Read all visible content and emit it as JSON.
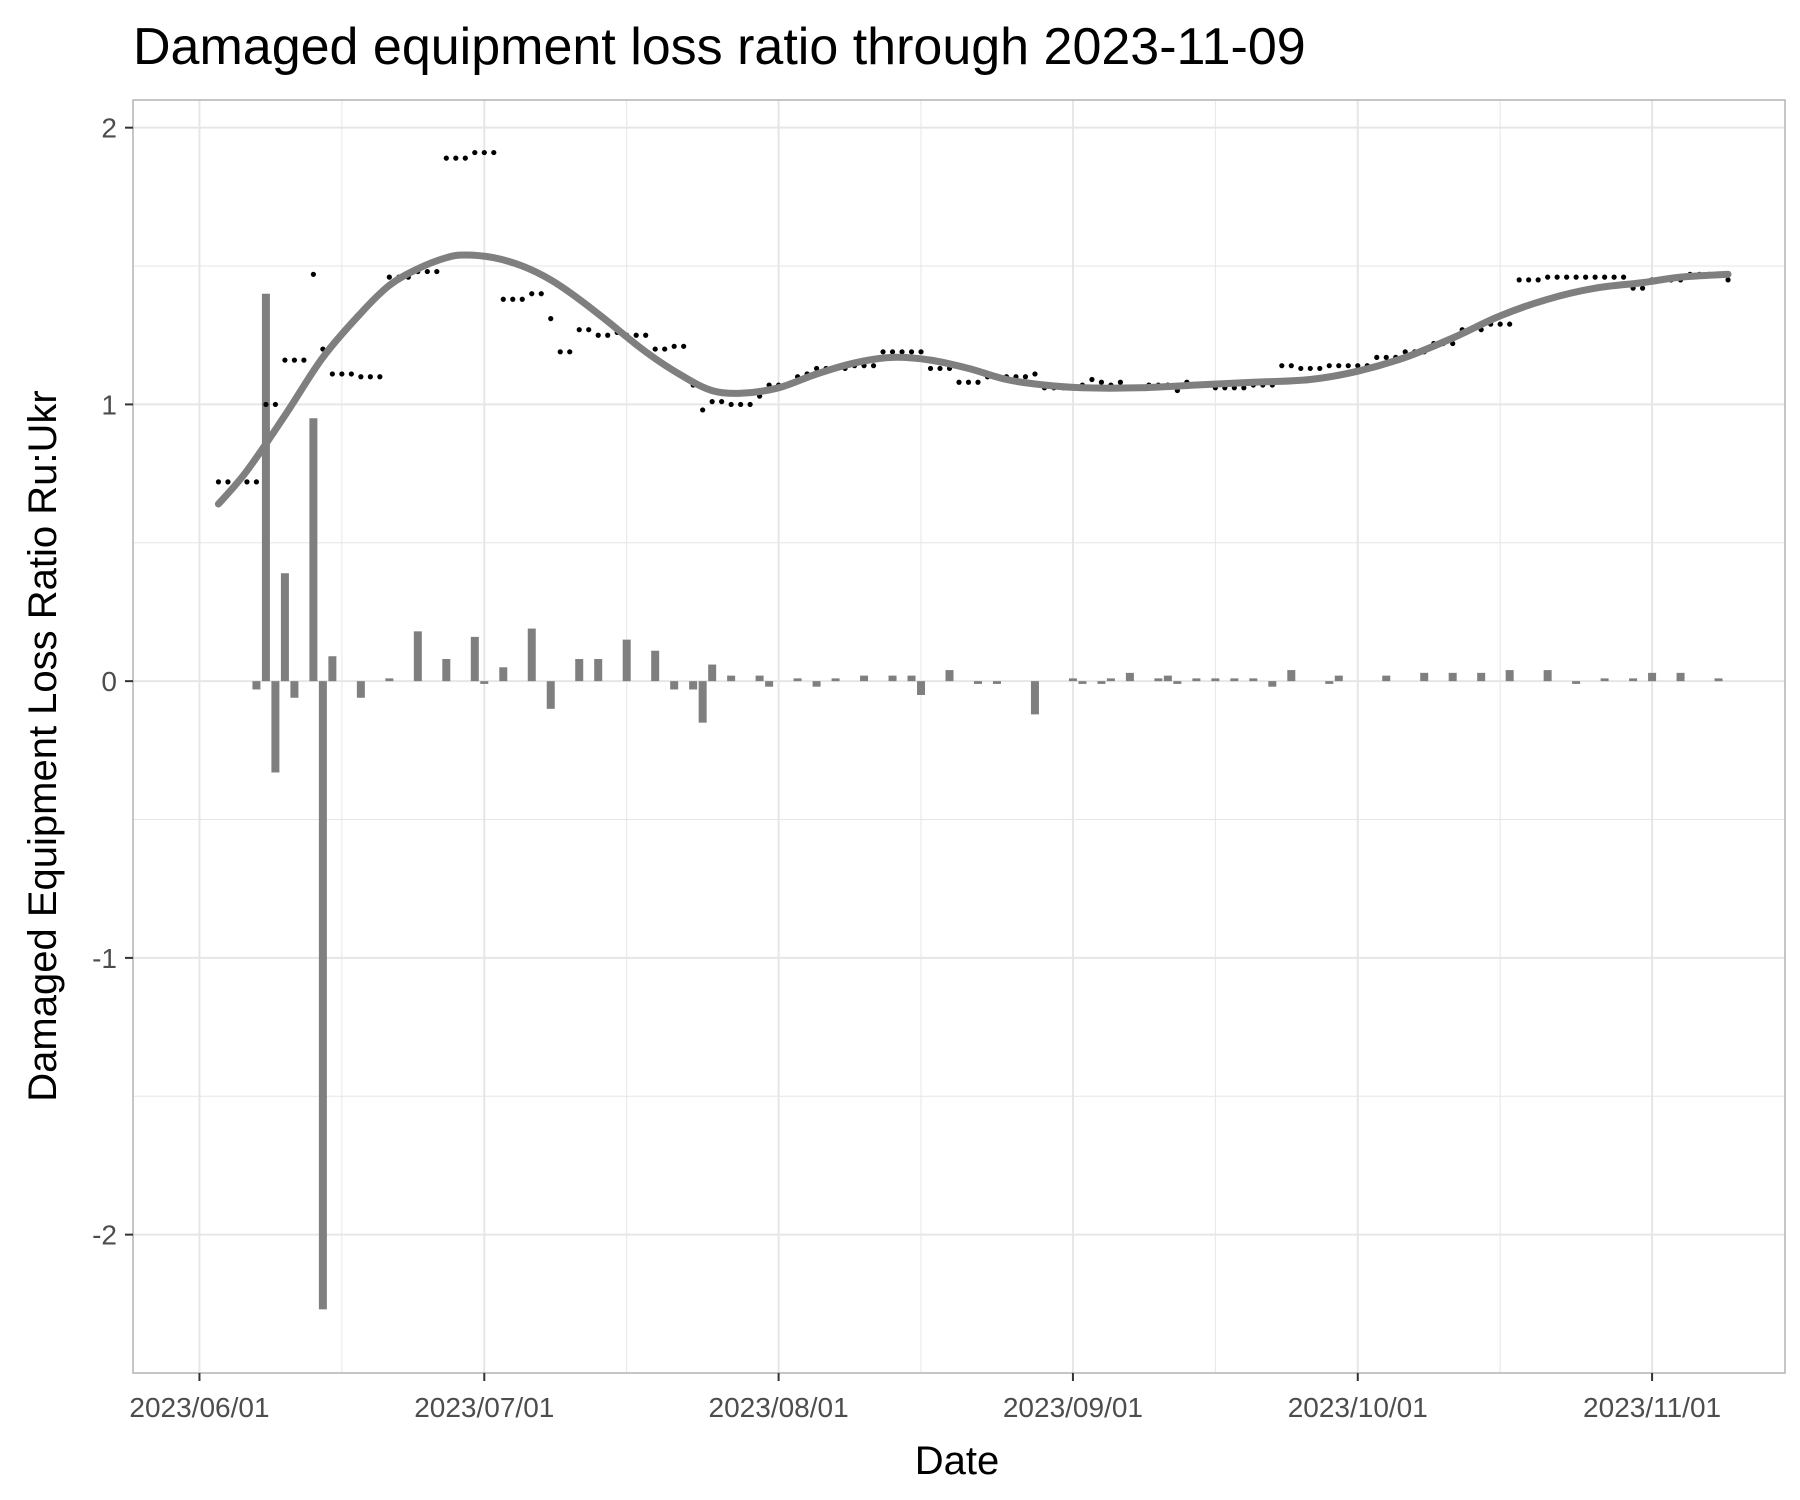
{
  "chart_data": {
    "type": "line",
    "title": "Damaged equipment loss ratio through 2023-11-09",
    "xlabel": "Date",
    "ylabel": "Damaged Equipment Loss Ratio Ru:Ukr",
    "xlim": [
      "2023-05-25",
      "2023-11-15"
    ],
    "ylim": [
      -2.5,
      2.1
    ],
    "grid": true,
    "legend": "none",
    "x_ticks": [
      "2023/06/01",
      "2023/07/01",
      "2023/08/01",
      "2023/09/01",
      "2023/10/01",
      "2023/11/01"
    ],
    "x_tick_dates": [
      "2023-06-01",
      "2023-07-01",
      "2023-08-01",
      "2023-09-01",
      "2023-10-01",
      "2023-11-01"
    ],
    "y_ticks": [
      "-2",
      "-1",
      "0",
      "1",
      "2"
    ],
    "y_tick_values": [
      -2,
      -1,
      0,
      1,
      2
    ],
    "colors": {
      "smooth": "#7f7f7f",
      "bars": "#7f7f7f",
      "points": "#000000",
      "grid": "#e6e6e6",
      "panel_border": "#b3b3b3"
    },
    "series": [
      {
        "type": "scatter",
        "points": [
          [
            "2023-06-03",
            0.72
          ],
          [
            "2023-06-04",
            0.72
          ],
          [
            "2023-06-05",
            0.72
          ],
          [
            "2023-06-06",
            0.72
          ],
          [
            "2023-06-07",
            0.72
          ],
          [
            "2023-06-08",
            1.0
          ],
          [
            "2023-06-09",
            1.0
          ],
          [
            "2023-06-10",
            1.16
          ],
          [
            "2023-06-11",
            1.16
          ],
          [
            "2023-06-12",
            1.16
          ],
          [
            "2023-06-13",
            1.47
          ],
          [
            "2023-06-14",
            1.2
          ],
          [
            "2023-06-15",
            1.11
          ],
          [
            "2023-06-16",
            1.11
          ],
          [
            "2023-06-17",
            1.11
          ],
          [
            "2023-06-18",
            1.1
          ],
          [
            "2023-06-19",
            1.1
          ],
          [
            "2023-06-20",
            1.1
          ],
          [
            "2023-06-21",
            1.46
          ],
          [
            "2023-06-22",
            1.46
          ],
          [
            "2023-06-23",
            1.46
          ],
          [
            "2023-06-24",
            1.48
          ],
          [
            "2023-06-25",
            1.48
          ],
          [
            "2023-06-26",
            1.48
          ],
          [
            "2023-06-27",
            1.89
          ],
          [
            "2023-06-28",
            1.89
          ],
          [
            "2023-06-29",
            1.89
          ],
          [
            "2023-06-30",
            1.91
          ],
          [
            "2023-07-01",
            1.91
          ],
          [
            "2023-07-02",
            1.91
          ],
          [
            "2023-07-03",
            1.38
          ],
          [
            "2023-07-04",
            1.38
          ],
          [
            "2023-07-05",
            1.38
          ],
          [
            "2023-07-06",
            1.4
          ],
          [
            "2023-07-07",
            1.4
          ],
          [
            "2023-07-08",
            1.31
          ],
          [
            "2023-07-09",
            1.19
          ],
          [
            "2023-07-10",
            1.19
          ],
          [
            "2023-07-11",
            1.27
          ],
          [
            "2023-07-12",
            1.27
          ],
          [
            "2023-07-13",
            1.25
          ],
          [
            "2023-07-14",
            1.25
          ],
          [
            "2023-07-15",
            1.26
          ],
          [
            "2023-07-16",
            1.25
          ],
          [
            "2023-07-17",
            1.25
          ],
          [
            "2023-07-18",
            1.25
          ],
          [
            "2023-07-19",
            1.2
          ],
          [
            "2023-07-20",
            1.2
          ],
          [
            "2023-07-21",
            1.21
          ],
          [
            "2023-07-22",
            1.21
          ],
          [
            "2023-07-23",
            1.07
          ],
          [
            "2023-07-24",
            0.98
          ],
          [
            "2023-07-25",
            1.01
          ],
          [
            "2023-07-26",
            1.01
          ],
          [
            "2023-07-27",
            1.0
          ],
          [
            "2023-07-28",
            1.0
          ],
          [
            "2023-07-29",
            1.0
          ],
          [
            "2023-07-30",
            1.03
          ],
          [
            "2023-07-31",
            1.07
          ],
          [
            "2023-08-01",
            1.07
          ],
          [
            "2023-08-02",
            1.07
          ],
          [
            "2023-08-03",
            1.1
          ],
          [
            "2023-08-04",
            1.11
          ],
          [
            "2023-08-05",
            1.13
          ],
          [
            "2023-08-06",
            1.13
          ],
          [
            "2023-08-07",
            1.13
          ],
          [
            "2023-08-08",
            1.13
          ],
          [
            "2023-08-09",
            1.14
          ],
          [
            "2023-08-10",
            1.14
          ],
          [
            "2023-08-11",
            1.14
          ],
          [
            "2023-08-12",
            1.19
          ],
          [
            "2023-08-13",
            1.19
          ],
          [
            "2023-08-14",
            1.19
          ],
          [
            "2023-08-15",
            1.19
          ],
          [
            "2023-08-16",
            1.19
          ],
          [
            "2023-08-17",
            1.13
          ],
          [
            "2023-08-18",
            1.13
          ],
          [
            "2023-08-19",
            1.13
          ],
          [
            "2023-08-20",
            1.08
          ],
          [
            "2023-08-21",
            1.08
          ],
          [
            "2023-08-22",
            1.08
          ],
          [
            "2023-08-23",
            1.1
          ],
          [
            "2023-08-24",
            1.1
          ],
          [
            "2023-08-25",
            1.1
          ],
          [
            "2023-08-26",
            1.1
          ],
          [
            "2023-08-27",
            1.1
          ],
          [
            "2023-08-28",
            1.11
          ],
          [
            "2023-08-29",
            1.06
          ],
          [
            "2023-08-30",
            1.06
          ],
          [
            "2023-08-31",
            1.06
          ],
          [
            "2023-09-01",
            1.06
          ],
          [
            "2023-09-02",
            1.07
          ],
          [
            "2023-09-03",
            1.09
          ],
          [
            "2023-09-04",
            1.08
          ],
          [
            "2023-09-05",
            1.07
          ],
          [
            "2023-09-06",
            1.08
          ],
          [
            "2023-09-07",
            1.06
          ],
          [
            "2023-09-08",
            1.06
          ],
          [
            "2023-09-09",
            1.07
          ],
          [
            "2023-09-10",
            1.07
          ],
          [
            "2023-09-11",
            1.07
          ],
          [
            "2023-09-12",
            1.05
          ],
          [
            "2023-09-13",
            1.08
          ],
          [
            "2023-09-14",
            1.07
          ],
          [
            "2023-09-15",
            1.07
          ],
          [
            "2023-09-16",
            1.06
          ],
          [
            "2023-09-17",
            1.06
          ],
          [
            "2023-09-18",
            1.06
          ],
          [
            "2023-09-19",
            1.06
          ],
          [
            "2023-09-20",
            1.07
          ],
          [
            "2023-09-21",
            1.07
          ],
          [
            "2023-09-22",
            1.07
          ],
          [
            "2023-09-23",
            1.14
          ],
          [
            "2023-09-24",
            1.14
          ],
          [
            "2023-09-25",
            1.13
          ],
          [
            "2023-09-26",
            1.13
          ],
          [
            "2023-09-27",
            1.13
          ],
          [
            "2023-09-28",
            1.14
          ],
          [
            "2023-09-29",
            1.14
          ],
          [
            "2023-09-30",
            1.14
          ],
          [
            "2023-10-01",
            1.14
          ],
          [
            "2023-10-02",
            1.14
          ],
          [
            "2023-10-03",
            1.17
          ],
          [
            "2023-10-04",
            1.17
          ],
          [
            "2023-10-05",
            1.17
          ],
          [
            "2023-10-06",
            1.19
          ],
          [
            "2023-10-07",
            1.19
          ],
          [
            "2023-10-08",
            1.19
          ],
          [
            "2023-10-09",
            1.22
          ],
          [
            "2023-10-10",
            1.22
          ],
          [
            "2023-10-11",
            1.22
          ],
          [
            "2023-10-12",
            1.27
          ],
          [
            "2023-10-13",
            1.27
          ],
          [
            "2023-10-14",
            1.27
          ],
          [
            "2023-10-15",
            1.29
          ],
          [
            "2023-10-16",
            1.29
          ],
          [
            "2023-10-17",
            1.29
          ],
          [
            "2023-10-18",
            1.45
          ],
          [
            "2023-10-19",
            1.45
          ],
          [
            "2023-10-20",
            1.45
          ],
          [
            "2023-10-21",
            1.46
          ],
          [
            "2023-10-22",
            1.46
          ],
          [
            "2023-10-23",
            1.46
          ],
          [
            "2023-10-24",
            1.46
          ],
          [
            "2023-10-25",
            1.46
          ],
          [
            "2023-10-26",
            1.46
          ],
          [
            "2023-10-27",
            1.46
          ],
          [
            "2023-10-28",
            1.46
          ],
          [
            "2023-10-29",
            1.46
          ],
          [
            "2023-10-30",
            1.42
          ],
          [
            "2023-10-31",
            1.42
          ],
          [
            "2023-11-01",
            1.45
          ],
          [
            "2023-11-02",
            1.45
          ],
          [
            "2023-11-03",
            1.45
          ],
          [
            "2023-11-04",
            1.45
          ],
          [
            "2023-11-05",
            1.47
          ],
          [
            "2023-11-06",
            1.47
          ],
          [
            "2023-11-07",
            1.47
          ],
          [
            "2023-11-08",
            1.47
          ],
          [
            "2023-11-09",
            1.45
          ]
        ]
      },
      {
        "type": "line",
        "points": [
          [
            "2023-06-03",
            0.64
          ],
          [
            "2023-06-06",
            0.76
          ],
          [
            "2023-06-10",
            0.96
          ],
          [
            "2023-06-14",
            1.17
          ],
          [
            "2023-06-18",
            1.33
          ],
          [
            "2023-06-21",
            1.43
          ],
          [
            "2023-06-24",
            1.49
          ],
          [
            "2023-06-27",
            1.53
          ],
          [
            "2023-06-29",
            1.54
          ],
          [
            "2023-07-02",
            1.53
          ],
          [
            "2023-07-05",
            1.5
          ],
          [
            "2023-07-08",
            1.45
          ],
          [
            "2023-07-11",
            1.38
          ],
          [
            "2023-07-14",
            1.3
          ],
          [
            "2023-07-18",
            1.19
          ],
          [
            "2023-07-22",
            1.1
          ],
          [
            "2023-07-25",
            1.05
          ],
          [
            "2023-07-28",
            1.04
          ],
          [
            "2023-08-01",
            1.06
          ],
          [
            "2023-08-05",
            1.11
          ],
          [
            "2023-08-09",
            1.15
          ],
          [
            "2023-08-13",
            1.17
          ],
          [
            "2023-08-17",
            1.16
          ],
          [
            "2023-08-21",
            1.13
          ],
          [
            "2023-08-25",
            1.09
          ],
          [
            "2023-08-29",
            1.07
          ],
          [
            "2023-09-02",
            1.06
          ],
          [
            "2023-09-08",
            1.06
          ],
          [
            "2023-09-14",
            1.07
          ],
          [
            "2023-09-20",
            1.08
          ],
          [
            "2023-09-26",
            1.09
          ],
          [
            "2023-10-01",
            1.12
          ],
          [
            "2023-10-06",
            1.17
          ],
          [
            "2023-10-11",
            1.24
          ],
          [
            "2023-10-16",
            1.32
          ],
          [
            "2023-10-21",
            1.38
          ],
          [
            "2023-10-26",
            1.42
          ],
          [
            "2023-10-31",
            1.44
          ],
          [
            "2023-11-04",
            1.46
          ],
          [
            "2023-11-09",
            1.47
          ]
        ]
      },
      {
        "type": "bar",
        "points": [
          [
            "2023-06-07",
            -0.03
          ],
          [
            "2023-06-08",
            1.4
          ],
          [
            "2023-06-09",
            -0.33
          ],
          [
            "2023-06-10",
            0.39
          ],
          [
            "2023-06-11",
            -0.06
          ],
          [
            "2023-06-13",
            0.95
          ],
          [
            "2023-06-14",
            -2.27
          ],
          [
            "2023-06-15",
            0.09
          ],
          [
            "2023-06-18",
            -0.06
          ],
          [
            "2023-06-21",
            0.01
          ],
          [
            "2023-06-24",
            0.18
          ],
          [
            "2023-06-27",
            0.08
          ],
          [
            "2023-06-30",
            0.16
          ],
          [
            "2023-07-01",
            -0.01
          ],
          [
            "2023-07-03",
            0.05
          ],
          [
            "2023-07-06",
            0.19
          ],
          [
            "2023-07-08",
            -0.1
          ],
          [
            "2023-07-11",
            0.08
          ],
          [
            "2023-07-13",
            0.08
          ],
          [
            "2023-07-16",
            0.15
          ],
          [
            "2023-07-19",
            0.11
          ],
          [
            "2023-07-21",
            -0.03
          ],
          [
            "2023-07-23",
            -0.03
          ],
          [
            "2023-07-24",
            -0.15
          ],
          [
            "2023-07-25",
            0.06
          ],
          [
            "2023-07-27",
            0.02
          ],
          [
            "2023-07-30",
            0.02
          ],
          [
            "2023-07-31",
            -0.02
          ],
          [
            "2023-08-03",
            0.01
          ],
          [
            "2023-08-05",
            -0.02
          ],
          [
            "2023-08-07",
            0.01
          ],
          [
            "2023-08-10",
            0.02
          ],
          [
            "2023-08-13",
            0.02
          ],
          [
            "2023-08-15",
            0.02
          ],
          [
            "2023-08-16",
            -0.05
          ],
          [
            "2023-08-19",
            0.04
          ],
          [
            "2023-08-22",
            -0.01
          ],
          [
            "2023-08-24",
            -0.01
          ],
          [
            "2023-08-28",
            -0.12
          ],
          [
            "2023-09-01",
            0.01
          ],
          [
            "2023-09-02",
            -0.01
          ],
          [
            "2023-09-04",
            -0.01
          ],
          [
            "2023-09-05",
            0.01
          ],
          [
            "2023-09-07",
            0.03
          ],
          [
            "2023-09-10",
            0.01
          ],
          [
            "2023-09-11",
            0.02
          ],
          [
            "2023-09-12",
            -0.01
          ],
          [
            "2023-09-14",
            0.01
          ],
          [
            "2023-09-16",
            0.01
          ],
          [
            "2023-09-18",
            0.01
          ],
          [
            "2023-09-20",
            0.01
          ],
          [
            "2023-09-22",
            -0.02
          ],
          [
            "2023-09-24",
            0.04
          ],
          [
            "2023-09-28",
            -0.01
          ],
          [
            "2023-09-29",
            0.02
          ],
          [
            "2023-10-04",
            0.02
          ],
          [
            "2023-10-08",
            0.03
          ],
          [
            "2023-10-11",
            0.03
          ],
          [
            "2023-10-14",
            0.03
          ],
          [
            "2023-10-17",
            0.04
          ],
          [
            "2023-10-21",
            0.04
          ],
          [
            "2023-10-24",
            -0.01
          ],
          [
            "2023-10-27",
            0.01
          ],
          [
            "2023-10-30",
            0.01
          ],
          [
            "2023-11-01",
            0.03
          ],
          [
            "2023-11-04",
            0.03
          ],
          [
            "2023-11-08",
            0.01
          ]
        ]
      }
    ]
  }
}
